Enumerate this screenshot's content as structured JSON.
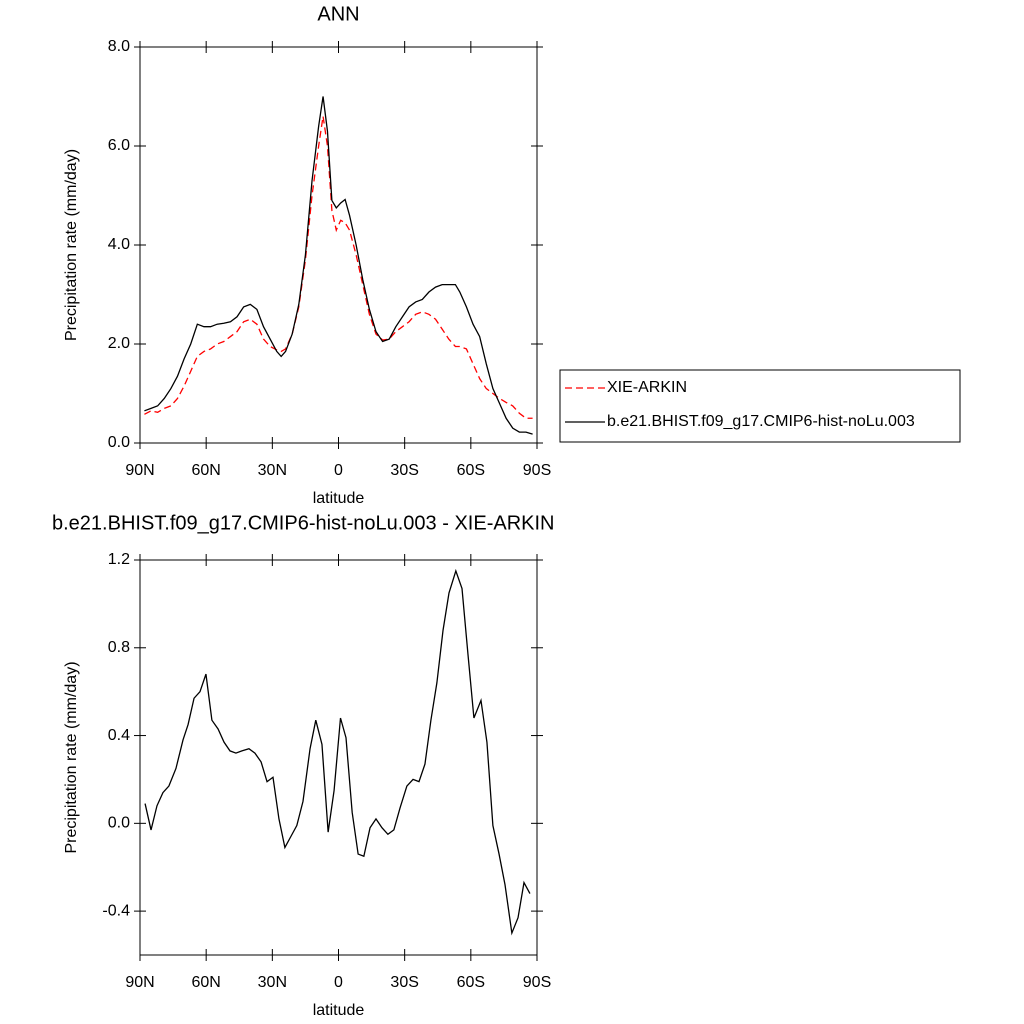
{
  "chart_data": [
    {
      "type": "line",
      "title": "ANN",
      "x_label": "latitude",
      "y_label": "Precipitation rate (mm/day)",
      "x": [
        88,
        85,
        82,
        79,
        76,
        73,
        70,
        67,
        64,
        61,
        58,
        55,
        52,
        49,
        46,
        43,
        40,
        37,
        34,
        31,
        28,
        26,
        24,
        21,
        18,
        15,
        12,
        9,
        7,
        5,
        3,
        1,
        -1,
        -3,
        -5,
        -8,
        -11,
        -14,
        -17,
        -20,
        -23,
        -26,
        -29,
        -32,
        -35,
        -38,
        -41,
        -44,
        -47,
        -50,
        -53,
        -55,
        -58,
        -61,
        -64,
        -67,
        -70,
        -73,
        -76,
        -79,
        -82,
        -85,
        -88
      ],
      "series": [
        {
          "name": "XIE-ARKIN",
          "color": "#ff0000",
          "linestyle": "dashed",
          "values": [
            0.58,
            0.65,
            0.62,
            0.7,
            0.75,
            0.9,
            1.15,
            1.45,
            1.75,
            1.85,
            1.9,
            2.0,
            2.05,
            2.15,
            2.25,
            2.45,
            2.5,
            2.4,
            2.1,
            1.95,
            1.88,
            1.85,
            1.9,
            2.2,
            2.75,
            3.7,
            5.0,
            6.0,
            6.6,
            6.0,
            4.7,
            4.3,
            4.5,
            4.45,
            4.3,
            3.8,
            3.2,
            2.6,
            2.2,
            2.08,
            2.1,
            2.25,
            2.35,
            2.45,
            2.6,
            2.65,
            2.6,
            2.5,
            2.3,
            2.1,
            1.95,
            1.95,
            1.9,
            1.6,
            1.3,
            1.1,
            1.0,
            0.9,
            0.82,
            0.75,
            0.6,
            0.5,
            0.5
          ]
        },
        {
          "name": "b.e21.BHIST.f09_g17.CMIP6-hist-noLu.003",
          "color": "#000000",
          "linestyle": "solid",
          "values": [
            0.65,
            0.7,
            0.75,
            0.9,
            1.1,
            1.35,
            1.7,
            2.0,
            2.4,
            2.35,
            2.35,
            2.4,
            2.42,
            2.45,
            2.55,
            2.75,
            2.8,
            2.7,
            2.35,
            2.1,
            1.85,
            1.75,
            1.85,
            2.2,
            2.8,
            3.8,
            5.3,
            6.4,
            7.0,
            6.3,
            4.9,
            4.75,
            4.85,
            4.92,
            4.6,
            4.0,
            3.3,
            2.7,
            2.25,
            2.05,
            2.1,
            2.35,
            2.55,
            2.75,
            2.85,
            2.9,
            3.05,
            3.15,
            3.2,
            3.2,
            3.2,
            3.05,
            2.75,
            2.4,
            2.15,
            1.6,
            1.1,
            0.8,
            0.5,
            0.3,
            0.22,
            0.22,
            0.18
          ]
        }
      ],
      "xlim": [
        90,
        -90
      ],
      "xticks": [
        {
          "value": 90,
          "label": "90N"
        },
        {
          "value": 60,
          "label": "60N"
        },
        {
          "value": 30,
          "label": "30N"
        },
        0,
        {
          "value": -30,
          "label": "30S"
        },
        {
          "value": -60,
          "label": "60S"
        },
        {
          "value": -90,
          "label": "90S"
        }
      ],
      "ylim": [
        0,
        8
      ],
      "yticks": [
        {
          "value": 0,
          "label": "0.0"
        },
        {
          "value": 2,
          "label": "2.0"
        },
        {
          "value": 4,
          "label": "4.0"
        },
        {
          "value": 6,
          "label": "6.0"
        },
        {
          "value": 8,
          "label": "8.0"
        }
      ],
      "legend": "right"
    },
    {
      "type": "line",
      "title": "b.e21.BHIST.f09_g17.CMIP6-hist-noLu.003 - XIE-ARKIN",
      "x_label": "latitude",
      "y_label": "Precipitation rate (mm/day)",
      "x": [
        87.7,
        85,
        82.3,
        79.6,
        76.9,
        73.7,
        70.5,
        68.2,
        65.5,
        62.8,
        60.1,
        57.4,
        54.6,
        51.9,
        49.2,
        46.5,
        43.8,
        40.6,
        37.9,
        35.1,
        32.4,
        29.7,
        27,
        24.3,
        21.6,
        18.9,
        16.1,
        12.9,
        10.3,
        7.5,
        4.7,
        2,
        -0.9,
        -3.4,
        -6.2,
        -8.9,
        -11.5,
        -14.3,
        -17,
        -19.7,
        -22.4,
        -25.1,
        -27.9,
        -31,
        -33.8,
        -36.5,
        -39.2,
        -41.9,
        -44.6,
        -47.4,
        -50.1,
        -53.2,
        -56,
        -58.7,
        -61.4,
        -64.6,
        -67.3,
        -70,
        -72.8,
        -75.5,
        -78.6,
        -81.4,
        -84.1,
        -86.8
      ],
      "values": [
        0.09,
        -0.03,
        0.08,
        0.14,
        0.17,
        0.25,
        0.38,
        0.45,
        0.57,
        0.6,
        0.68,
        0.47,
        0.43,
        0.37,
        0.33,
        0.32,
        0.33,
        0.34,
        0.32,
        0.28,
        0.19,
        0.21,
        0.02,
        -0.11,
        -0.06,
        -0.01,
        0.1,
        0.34,
        0.47,
        0.36,
        -0.04,
        0.15,
        0.48,
        0.39,
        0.05,
        -0.14,
        -0.15,
        -0.02,
        0.02,
        -0.02,
        -0.05,
        -0.03,
        0.07,
        0.17,
        0.2,
        0.19,
        0.27,
        0.47,
        0.64,
        0.88,
        1.05,
        1.15,
        1.07,
        0.77,
        0.48,
        0.56,
        0.37,
        -0.01,
        -0.14,
        -0.28,
        -0.5,
        -0.43,
        -0.27,
        -0.32
      ],
      "color": "#000000",
      "xlim": [
        90,
        -90
      ],
      "xticks": [
        {
          "value": 90,
          "label": "90N"
        },
        {
          "value": 60,
          "label": "60N"
        },
        {
          "value": 30,
          "label": "30N"
        },
        0,
        {
          "value": -30,
          "label": "30S"
        },
        {
          "value": -60,
          "label": "60S"
        },
        {
          "value": -90,
          "label": "90S"
        }
      ],
      "ylim": [
        -0.6,
        1.2
      ],
      "yticks": [
        -0.4,
        {
          "value": 0,
          "label": "0.0"
        },
        0.4,
        0.8,
        1.2
      ]
    }
  ]
}
